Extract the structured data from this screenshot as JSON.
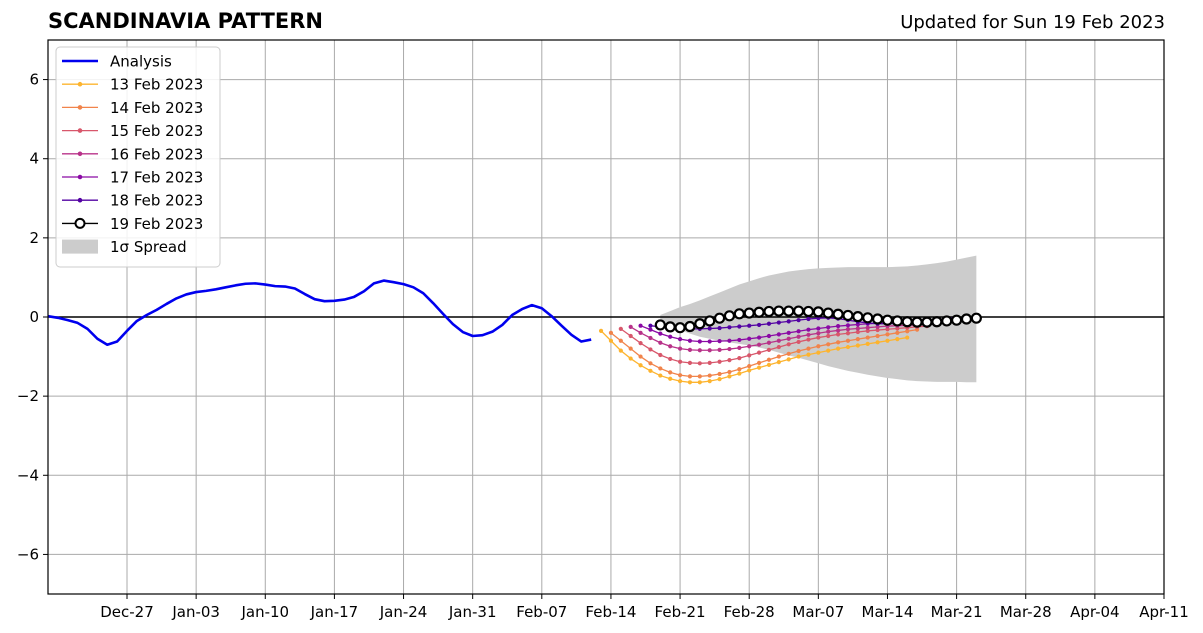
{
  "chart_data": {
    "type": "line",
    "title": "SCANDINAVIA PATTERN",
    "subtitle": "Updated for Sun 19 Feb 2023",
    "xlabel": "",
    "ylabel": "",
    "ylim": [
      -7,
      7
    ],
    "xlim": [
      "2022-12-19",
      "2023-04-11"
    ],
    "grid": true,
    "legend_position": "top-left",
    "x_ticks": [
      "Dec-27",
      "Jan-03",
      "Jan-10",
      "Jan-17",
      "Jan-24",
      "Jan-31",
      "Feb-07",
      "Feb-14",
      "Feb-21",
      "Feb-28",
      "Mar-07",
      "Mar-14",
      "Mar-21",
      "Mar-28",
      "Apr-04",
      "Apr-11"
    ],
    "y_ticks": [
      6,
      4,
      2,
      0,
      -2,
      -4,
      -6
    ],
    "y_tick_labels": [
      "6",
      "4",
      "2",
      "0",
      "−2",
      "−4",
      "−6"
    ],
    "series": [
      {
        "name": "Analysis",
        "color": "#0000ee",
        "x_start": "2022-12-19",
        "values": [
          0.02,
          -0.02,
          -0.08,
          -0.15,
          -0.3,
          -0.55,
          -0.7,
          -0.62,
          -0.35,
          -0.1,
          0.05,
          0.18,
          0.33,
          0.47,
          0.57,
          0.63,
          0.66,
          0.7,
          0.75,
          0.8,
          0.84,
          0.85,
          0.82,
          0.78,
          0.77,
          0.72,
          0.58,
          0.45,
          0.4,
          0.41,
          0.44,
          0.51,
          0.65,
          0.85,
          0.92,
          0.88,
          0.83,
          0.75,
          0.6,
          0.35,
          0.08,
          -0.18,
          -0.38,
          -0.48,
          -0.46,
          -0.37,
          -0.2,
          0.05,
          0.2,
          0.3,
          0.22,
          0.02,
          -0.22,
          -0.45,
          -0.62,
          -0.57
        ]
      },
      {
        "name": "13 Feb 2023",
        "color": "#fdb42f",
        "x_start": "2023-02-13",
        "values": [
          -0.35,
          -0.6,
          -0.85,
          -1.05,
          -1.22,
          -1.36,
          -1.48,
          -1.56,
          -1.62,
          -1.65,
          -1.65,
          -1.62,
          -1.57,
          -1.5,
          -1.43,
          -1.35,
          -1.28,
          -1.21,
          -1.14,
          -1.07,
          -1.0,
          -0.95,
          -0.9,
          -0.85,
          -0.8,
          -0.76,
          -0.72,
          -0.68,
          -0.64,
          -0.6,
          -0.56,
          -0.52
        ]
      },
      {
        "name": "14 Feb 2023",
        "color": "#f1844b",
        "x_start": "2023-02-14",
        "values": [
          -0.4,
          -0.6,
          -0.8,
          -1.0,
          -1.17,
          -1.3,
          -1.4,
          -1.47,
          -1.5,
          -1.5,
          -1.48,
          -1.44,
          -1.39,
          -1.32,
          -1.24,
          -1.16,
          -1.08,
          -1.0,
          -0.93,
          -0.86,
          -0.8,
          -0.74,
          -0.69,
          -0.64,
          -0.6,
          -0.56,
          -0.52,
          -0.48,
          -0.44,
          -0.4,
          -0.36,
          -0.32
        ]
      },
      {
        "name": "15 Feb 2023",
        "color": "#d8576b",
        "x_start": "2023-02-15",
        "values": [
          -0.3,
          -0.48,
          -0.66,
          -0.82,
          -0.96,
          -1.06,
          -1.13,
          -1.16,
          -1.17,
          -1.16,
          -1.13,
          -1.09,
          -1.04,
          -0.97,
          -0.9,
          -0.83,
          -0.76,
          -0.69,
          -0.63,
          -0.57,
          -0.52,
          -0.48,
          -0.44,
          -0.41,
          -0.38,
          -0.35,
          -0.33,
          -0.31,
          -0.29,
          -0.27,
          -0.25,
          -0.23
        ]
      },
      {
        "name": "16 Feb 2023",
        "color": "#b83289",
        "x_start": "2023-02-16",
        "values": [
          -0.25,
          -0.4,
          -0.53,
          -0.65,
          -0.74,
          -0.8,
          -0.83,
          -0.84,
          -0.84,
          -0.83,
          -0.81,
          -0.78,
          -0.74,
          -0.7,
          -0.65,
          -0.6,
          -0.55,
          -0.5,
          -0.45,
          -0.41,
          -0.37,
          -0.34,
          -0.31,
          -0.29,
          -0.27,
          -0.25,
          -0.23,
          -0.22,
          -0.21,
          -0.2,
          -0.19,
          -0.18
        ]
      },
      {
        "name": "17 Feb 2023",
        "color": "#8b0aa5",
        "x_start": "2023-02-17",
        "values": [
          -0.22,
          -0.32,
          -0.42,
          -0.5,
          -0.56,
          -0.6,
          -0.62,
          -0.62,
          -0.61,
          -0.6,
          -0.58,
          -0.55,
          -0.52,
          -0.48,
          -0.44,
          -0.4,
          -0.36,
          -0.32,
          -0.29,
          -0.26,
          -0.23,
          -0.21,
          -0.19,
          -0.17,
          -0.16,
          -0.15,
          -0.14,
          -0.13,
          -0.12,
          -0.11,
          -0.1,
          -0.09
        ]
      },
      {
        "name": "18 Feb 2023",
        "color": "#5302a3",
        "x_start": "2023-02-18",
        "values": [
          -0.22,
          -0.25,
          -0.28,
          -0.3,
          -0.3,
          -0.3,
          -0.29,
          -0.28,
          -0.26,
          -0.24,
          -0.22,
          -0.2,
          -0.17,
          -0.14,
          -0.11,
          -0.08,
          -0.05,
          -0.03,
          -0.02,
          -0.04,
          -0.08,
          -0.12,
          -0.15,
          -0.17,
          -0.17,
          -0.16,
          -0.14,
          -0.12,
          -0.1,
          -0.07,
          -0.04,
          0.0
        ]
      },
      {
        "name": "19 Feb 2023",
        "color": "#000000",
        "marker": "open-circle",
        "x_start": "2023-02-19",
        "values": [
          -0.2,
          -0.25,
          -0.27,
          -0.24,
          -0.17,
          -0.1,
          -0.03,
          0.03,
          0.08,
          0.1,
          0.12,
          0.14,
          0.15,
          0.15,
          0.15,
          0.14,
          0.13,
          0.1,
          0.07,
          0.04,
          0.01,
          -0.02,
          -0.05,
          -0.08,
          -0.1,
          -0.12,
          -0.13,
          -0.13,
          -0.12,
          -0.1,
          -0.08,
          -0.05,
          -0.03
        ]
      }
    ],
    "spread": {
      "name": "1σ Spread",
      "color": "#cccccc",
      "x_start": "2023-02-19",
      "upper": [
        0.05,
        0.15,
        0.25,
        0.33,
        0.42,
        0.52,
        0.62,
        0.72,
        0.82,
        0.9,
        0.98,
        1.05,
        1.1,
        1.15,
        1.18,
        1.21,
        1.23,
        1.24,
        1.25,
        1.26,
        1.26,
        1.26,
        1.26,
        1.26,
        1.27,
        1.28,
        1.3,
        1.33,
        1.36,
        1.4,
        1.45,
        1.5,
        1.55
      ],
      "lower": [
        -0.05,
        -0.2,
        -0.33,
        -0.42,
        -0.5,
        -0.55,
        -0.6,
        -0.64,
        -0.68,
        -0.72,
        -0.77,
        -0.83,
        -0.9,
        -0.97,
        -1.03,
        -1.1,
        -1.17,
        -1.24,
        -1.3,
        -1.36,
        -1.41,
        -1.46,
        -1.5,
        -1.54,
        -1.57,
        -1.6,
        -1.62,
        -1.63,
        -1.64,
        -1.64,
        -1.64,
        -1.65,
        -1.65
      ]
    }
  }
}
